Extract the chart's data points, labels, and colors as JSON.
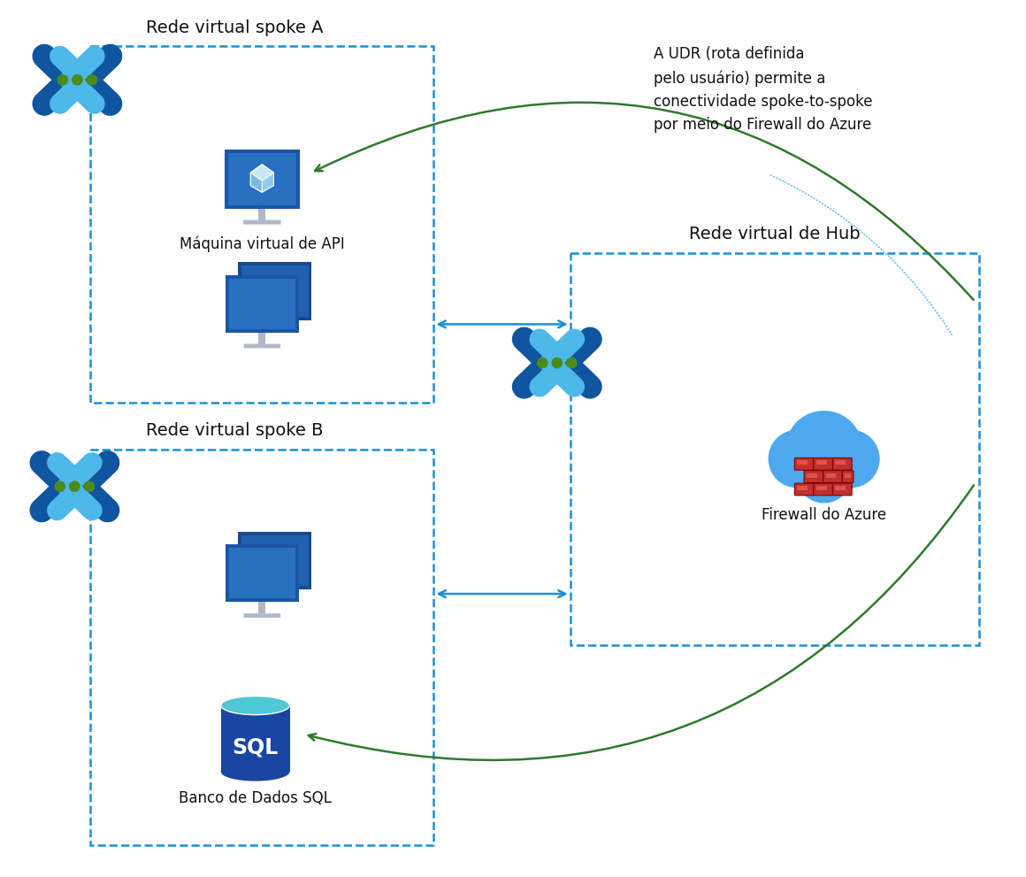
{
  "bg_color": "#ffffff",
  "dashed_box_color": "#1a90d4",
  "spoke_a_label": "Rede virtual spoke A",
  "spoke_b_label": "Rede virtual spoke B",
  "hub_label": "Rede virtual de Hub",
  "vm_api_label": "Máquina virtual de API",
  "sql_label": "Banco de Dados SQL",
  "firewall_label": "Firewall do Azure",
  "udr_text": "A UDR (rota definida\npelo usuário) permite a\nconectividade spoke-to-spoke\npor meio do Firewall do Azure",
  "arrow_blue": "#1a90d4",
  "arrow_green": "#2d7a2d",
  "text_color": "#111111",
  "icon_blue_dark": "#1055a0",
  "icon_blue_light": "#4db8ea",
  "icon_green_dot": "#4a8c1a",
  "cloud_blue": "#4da8f0",
  "brick_red": "#c0302a",
  "brick_light": "#e05050",
  "sql_body": "#1a45a0",
  "sql_top": "#50c8d8",
  "monitor_dark": "#1a55a8",
  "monitor_mid": "#2870c0",
  "monitor_light": "#90ccf0",
  "stand_color": "#b0b8c8"
}
